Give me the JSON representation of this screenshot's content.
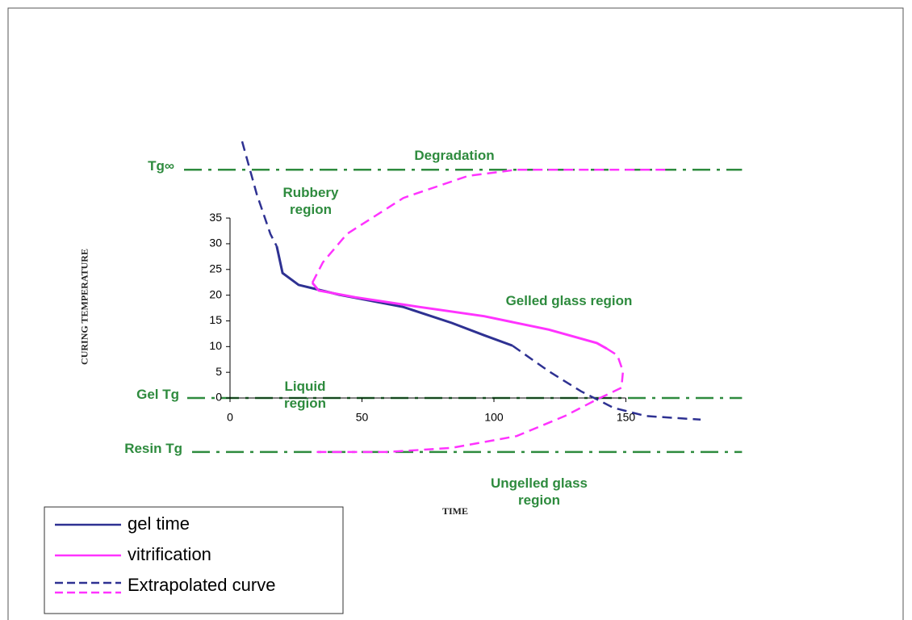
{
  "chart_data": {
    "type": "line",
    "x_label": "TIME",
    "y_label": "CURING TEMPERATURE",
    "xlim": [
      -17,
      194
    ],
    "ylim": [
      -14,
      52
    ],
    "xticks": [
      0,
      50,
      100,
      150
    ],
    "yticks": [
      0,
      5,
      10,
      15,
      20,
      25,
      30,
      35
    ],
    "legend": "lower left",
    "reference_lines": [
      {
        "label": "Tg∞",
        "value": 44.4,
        "color": "#2e8b3e"
      },
      {
        "label": "Gel Tg",
        "value": 0,
        "color": "#2e8b3e"
      },
      {
        "label": "Resin Tg",
        "value": -10.5,
        "color": "#2e8b3e"
      }
    ],
    "annotations": [
      "Degradation",
      "Rubbery region",
      "Gelled glass region",
      "Liquid region",
      "Ungelled glass region"
    ],
    "series": [
      {
        "name": "gel time",
        "color": "#2e3192",
        "dashed": false,
        "x": [
          17.7,
          19.9,
          26,
          41.3,
          65.7,
          84,
          96.3,
          107
        ],
        "values": [
          29.5,
          24.3,
          22,
          20.1,
          17.7,
          14.6,
          12.2,
          10.2
        ]
      },
      {
        "name": "vitrification",
        "color": "#ff33ff",
        "dashed": false,
        "x": [
          31.2,
          33.6,
          47.4,
          71.9,
          96.3,
          120.8,
          139,
          142.8
        ],
        "values": [
          22.4,
          20.9,
          19.6,
          17.7,
          15.9,
          13.3,
          10.7,
          9.6
        ]
      },
      {
        "name": "Extrapolated curve",
        "color": "#2e3192",
        "dashed": true,
        "x": [
          4.6,
          10.1,
          15.3,
          17.7,
          null,
          107,
          120.8,
          133,
          145.3,
          157.5,
          178.3
        ],
        "values": [
          49.9,
          39.7,
          31.9,
          29.5,
          null,
          10.2,
          5.2,
          1.3,
          -1.9,
          -3.5,
          -4.2
        ]
      },
      {
        "color": "#ff33ff",
        "dashed": true,
        "x": [
          31.2,
          35.2,
          44.3,
          65.7,
          90.2,
          108.6,
          166.7,
          null,
          142.8,
          146.8,
          148.9,
          148.3,
          139,
          126.9,
          108.6,
          84,
          59.6,
          32.1
        ],
        "values": [
          22.4,
          26.4,
          31.9,
          38.9,
          43.2,
          44.4,
          44.4,
          null,
          9.6,
          8.3,
          5.2,
          2,
          -0.3,
          -3.5,
          -7.4,
          -9.7,
          -10.5,
          -10.5
        ]
      }
    ]
  }
}
